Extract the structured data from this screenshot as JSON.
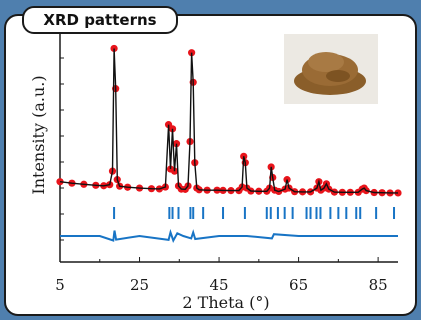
{
  "panel": {
    "title": "XRD patterns"
  },
  "chart_data": {
    "type": "line",
    "xlabel": "2 Theta (°)",
    "ylabel": "Intensity (a.u.)",
    "xlim": [
      5,
      90
    ],
    "xticks": [
      5,
      25,
      45,
      65,
      85
    ],
    "legend": "none",
    "grid": false,
    "inset": "photo of brown powder sample",
    "colors": {
      "observed": "#e8141b",
      "calculated": "#111111",
      "bragg": "#1874c5",
      "difference": "#1874c5"
    },
    "series": [
      {
        "role": "observed",
        "x": [
          5,
          8,
          11,
          14,
          16,
          17.5,
          18.2,
          18.6,
          19,
          19.4,
          20,
          22,
          25,
          28,
          30,
          31.5,
          32.3,
          32.8,
          33.3,
          33.8,
          34.3,
          34.8,
          35.5,
          36.5,
          37.2,
          37.7,
          38.1,
          38.5,
          38.9,
          39.4,
          40,
          42,
          44.5,
          46,
          48,
          50,
          50.8,
          51.2,
          51.6,
          52,
          53,
          55,
          57,
          57.7,
          58.1,
          58.5,
          59,
          60,
          61.6,
          62.1,
          62.6,
          64,
          66,
          68,
          69.6,
          70.1,
          70.6,
          71.4,
          72,
          72.6,
          74,
          76,
          78,
          80,
          81,
          81.5,
          82,
          84,
          86,
          88,
          90
        ],
        "y": [
          11.0,
          10.3,
          9.8,
          9.3,
          9.1,
          9.6,
          16,
          74,
          55,
          12,
          8.9,
          8.4,
          8.0,
          7.7,
          7.6,
          8.5,
          38,
          17,
          36,
          16,
          29,
          9,
          7.5,
          7.4,
          9,
          30,
          72,
          58,
          20,
          8,
          7.2,
          7.0,
          7.0,
          6.9,
          6.8,
          6.8,
          8.5,
          23,
          20,
          8,
          6.6,
          6.5,
          6.5,
          8,
          18,
          13,
          7,
          6.4,
          7.5,
          12,
          8,
          6.3,
          6.2,
          6.2,
          8,
          11,
          7,
          8,
          10,
          7.5,
          6.1,
          6.0,
          6.0,
          6.0,
          7.5,
          8,
          6.8,
          5.9,
          5.8,
          5.7,
          5.7
        ]
      }
    ],
    "bragg_positions": [
      18.6,
      32.5,
      33.3,
      34.8,
      37.8,
      38.5,
      41,
      46,
      51.5,
      57,
      58,
      59.8,
      61.5,
      63.5,
      67,
      68,
      69.5,
      70.5,
      73,
      75,
      77,
      79.5,
      80.5,
      84.5,
      89
    ],
    "difference_x": [
      5,
      15,
      18.4,
      18.7,
      19.1,
      25,
      32.3,
      32.8,
      33.5,
      34.5,
      36,
      38,
      38.5,
      39,
      45,
      52,
      58.3,
      58.8,
      65,
      75,
      85,
      90
    ],
    "difference_y": [
      0,
      0,
      -1.5,
      1.8,
      -1.2,
      0,
      -1.3,
      1.2,
      -1.5,
      0.9,
      0,
      -0.8,
      1.2,
      -1,
      0,
      0,
      -0.8,
      0.6,
      0,
      0,
      0,
      0
    ]
  }
}
